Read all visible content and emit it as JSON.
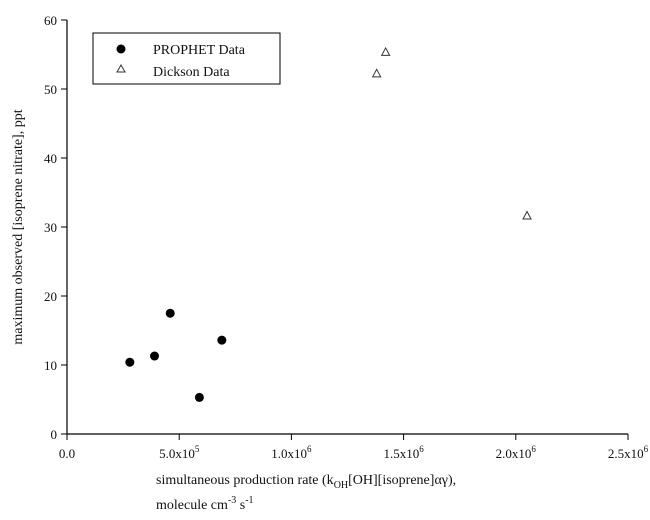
{
  "chart_data": {
    "type": "scatter",
    "title": "",
    "xlabel_line1_prefix": "simultaneous production rate (k",
    "xlabel_sub_oh": "OH",
    "xlabel_line1_suffix": "[OH][isoprene]αγ),",
    "xlabel_line2_prefix": "molecule cm",
    "xlabel_sup_m3": "-3",
    "xlabel_mid_s": " s",
    "xlabel_sup_m1": "-1",
    "ylabel": "maximum observed [isoprene nitrate], ppt",
    "xlim": [
      0,
      2500000
    ],
    "ylim": [
      0,
      60
    ],
    "x_ticks": [
      {
        "value": 0,
        "mantissa": "0.0",
        "exp": ""
      },
      {
        "value": 500000,
        "mantissa": "5.0x10",
        "exp": "5"
      },
      {
        "value": 1000000,
        "mantissa": "1.0x10",
        "exp": "6"
      },
      {
        "value": 1500000,
        "mantissa": "1.5x10",
        "exp": "6"
      },
      {
        "value": 2000000,
        "mantissa": "2.0x10",
        "exp": "6"
      },
      {
        "value": 2500000,
        "mantissa": "2.5x10",
        "exp": "6"
      }
    ],
    "y_ticks": [
      0,
      10,
      20,
      30,
      40,
      50,
      60
    ],
    "grid": false,
    "legend_position": "top-left",
    "series": [
      {
        "name": "PROPHET Data",
        "marker": "filled-circle",
        "color": "#000000",
        "points": [
          {
            "x": 280000,
            "y": 10.4
          },
          {
            "x": 390000,
            "y": 11.3
          },
          {
            "x": 460000,
            "y": 17.5
          },
          {
            "x": 590000,
            "y": 5.3
          },
          {
            "x": 690000,
            "y": 13.6
          }
        ]
      },
      {
        "name": "Dickson Data",
        "marker": "open-triangle",
        "color": "#333333",
        "points": [
          {
            "x": 1380000,
            "y": 52.2
          },
          {
            "x": 1420000,
            "y": 55.3
          },
          {
            "x": 2050000,
            "y": 31.6
          }
        ]
      }
    ]
  }
}
